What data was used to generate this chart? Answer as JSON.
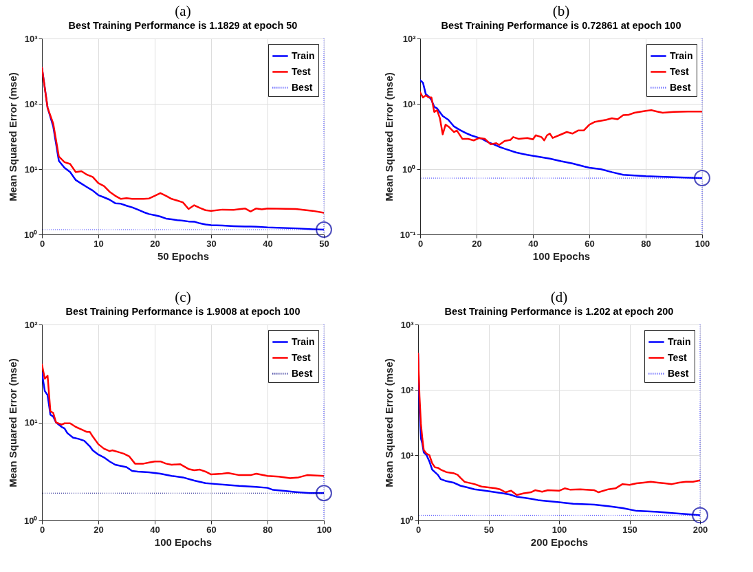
{
  "chart_data": [
    {
      "type": "line",
      "title": "(a)",
      "subtitle": "Best Training Performance is 1.1829 at epoch 50",
      "xlabel": "50 Epochs",
      "ylabel": "Mean Squared Error  (mse)",
      "log": true,
      "grid": true,
      "legend": "top right",
      "xlim": [
        0,
        50
      ],
      "ylim": [
        1,
        1000
      ],
      "xticks": [
        0,
        10,
        20,
        30,
        40,
        50
      ],
      "yticks": [
        {
          "value": 1,
          "label": "10⁰"
        },
        {
          "value": 10,
          "label": "10¹"
        },
        {
          "value": 100,
          "label": "10²"
        },
        {
          "value": 1000,
          "label": "10³"
        }
      ],
      "series": [
        {
          "name": "Train",
          "color": "#0000ff",
          "x": [
            0,
            1,
            2,
            3,
            4,
            5,
            6,
            7,
            8,
            9,
            10,
            11,
            12,
            13,
            14,
            15,
            16,
            17,
            18,
            19,
            20,
            21,
            22,
            23,
            24,
            25,
            26,
            27,
            28,
            29,
            30,
            32,
            34,
            36,
            37,
            38,
            39,
            40,
            45,
            48,
            50
          ],
          "values": [
            357,
            87,
            45,
            13.4,
            10.5,
            9,
            6.8,
            6,
            5.3,
            4.7,
            4.0,
            3.7,
            3.4,
            3.0,
            2.95,
            2.75,
            2.6,
            2.4,
            2.2,
            2.05,
            1.97,
            1.88,
            1.75,
            1.7,
            1.65,
            1.62,
            1.58,
            1.57,
            1.48,
            1.42,
            1.39,
            1.37,
            1.34,
            1.32,
            1.32,
            1.31,
            1.3,
            1.28,
            1.24,
            1.2,
            1.1829
          ]
        },
        {
          "name": "Test",
          "color": "#ff0000",
          "x": [
            0,
            1,
            2,
            3,
            4,
            5,
            6,
            7,
            8,
            9,
            10,
            11,
            12,
            13,
            14,
            15,
            16,
            17,
            18,
            19,
            20,
            21,
            22,
            23,
            24,
            25,
            26,
            27,
            28,
            29,
            30,
            32,
            34,
            36,
            37,
            38,
            39,
            40,
            45,
            48,
            50
          ],
          "values": [
            357,
            87,
            50,
            15.6,
            12.8,
            12,
            9,
            9.3,
            8.2,
            7.6,
            6.1,
            5.5,
            4.5,
            3.9,
            3.5,
            3.6,
            3.5,
            3.5,
            3.5,
            3.55,
            3.9,
            4.3,
            3.9,
            3.5,
            3.3,
            3.1,
            2.45,
            2.8,
            2.55,
            2.35,
            2.3,
            2.4,
            2.38,
            2.5,
            2.25,
            2.5,
            2.42,
            2.5,
            2.45,
            2.3,
            2.15
          ]
        },
        {
          "type": "scatter",
          "color": "#0000a0",
          "x": [
            50
          ],
          "values": [
            1.1829
          ]
        }
      ],
      "ref_lines": [
        {
          "axis": "y",
          "value": 1.1829,
          "label": "Best",
          "color": "#3333ff",
          "line_style": "dotted"
        },
        {
          "axis": "x",
          "value": 50,
          "color": "#3333ff",
          "line_style": "dotted"
        }
      ]
    },
    {
      "type": "line",
      "title": "(b)",
      "subtitle": "Best Training Performance is 0.72861 at epoch 100",
      "xlabel": "100 Epochs",
      "ylabel": "Mean Squared Error  (mse)",
      "log": true,
      "grid": true,
      "legend": "top right",
      "xlim": [
        0,
        100
      ],
      "ylim": [
        0.1,
        100
      ],
      "xticks": [
        0,
        20,
        40,
        60,
        80,
        100
      ],
      "yticks": [
        {
          "value": 0.1,
          "label": "10⁻¹"
        },
        {
          "value": 1,
          "label": "10⁰"
        },
        {
          "value": 10,
          "label": "10¹"
        },
        {
          "value": 100,
          "label": "10²"
        }
      ],
      "series": [
        {
          "name": "Train",
          "color": "#0000ff",
          "x": [
            0,
            1,
            2,
            3,
            4,
            5,
            6,
            8,
            10,
            12,
            14,
            16,
            18,
            20,
            22,
            24,
            26,
            28,
            30,
            34,
            38,
            42,
            46,
            50,
            54,
            58,
            60,
            64,
            68,
            72,
            76,
            80,
            90,
            100
          ],
          "values": [
            23,
            21,
            14,
            13,
            11.5,
            9,
            8.5,
            6.5,
            5.7,
            4.5,
            4.0,
            3.6,
            3.3,
            3.1,
            2.9,
            2.6,
            2.4,
            2.2,
            2.05,
            1.8,
            1.65,
            1.55,
            1.45,
            1.32,
            1.22,
            1.1,
            1.05,
            1.0,
            0.9,
            0.82,
            0.8,
            0.78,
            0.75,
            0.72861
          ]
        },
        {
          "name": "Test",
          "color": "#ff0000",
          "x": [
            0,
            1,
            2,
            3,
            4,
            5,
            6,
            7,
            8,
            9,
            10,
            12,
            13,
            15,
            17,
            19,
            21,
            23,
            25,
            27,
            28,
            30,
            32,
            33,
            35,
            38,
            40,
            41,
            43,
            44,
            45,
            46,
            47,
            50,
            52,
            54,
            56,
            58,
            60,
            62,
            64,
            66,
            68,
            70,
            72,
            74,
            76,
            80,
            82,
            84,
            86,
            90,
            95,
            100
          ],
          "values": [
            15,
            12.5,
            13.5,
            12.5,
            12.5,
            7.5,
            8,
            6,
            3.4,
            4.8,
            4.5,
            3.7,
            3.9,
            2.9,
            2.9,
            2.75,
            3.0,
            2.9,
            2.4,
            2.5,
            2.35,
            2.7,
            2.8,
            3.1,
            2.9,
            3.0,
            2.85,
            3.3,
            3.1,
            2.75,
            3.3,
            3.5,
            3.0,
            3.4,
            3.7,
            3.5,
            3.9,
            3.9,
            4.8,
            5.3,
            5.5,
            5.7,
            6.0,
            5.8,
            6.7,
            6.8,
            7.3,
            7.8,
            8.0,
            7.6,
            7.3,
            7.5,
            7.6,
            7.6
          ]
        },
        {
          "type": "scatter",
          "color": "#0000a0",
          "x": [
            100
          ],
          "values": [
            0.72861
          ]
        }
      ],
      "ref_lines": [
        {
          "axis": "y",
          "value": 0.72861,
          "label": "Best",
          "color": "#3333ff",
          "line_style": "dotted"
        },
        {
          "axis": "x",
          "value": 100,
          "color": "#3333ff",
          "line_style": "dotted"
        }
      ]
    },
    {
      "type": "line",
      "title": "(c)",
      "subtitle": "Best Training Performance is 1.9008 at epoch 100",
      "xlabel": "100 Epochs",
      "ylabel": "Mean Squared Error  (mse)",
      "log": true,
      "grid": true,
      "legend": "top right",
      "xlim": [
        0,
        100
      ],
      "ylim": [
        1,
        100
      ],
      "xticks": [
        0,
        20,
        40,
        60,
        80,
        100
      ],
      "yticks": [
        {
          "value": 1,
          "label": "10⁰"
        },
        {
          "value": 10,
          "label": "10¹"
        },
        {
          "value": 100,
          "label": "10²"
        }
      ],
      "series": [
        {
          "name": "Train",
          "color": "#0000ff",
          "x": [
            0,
            1,
            2,
            3,
            4,
            5,
            7,
            8,
            9,
            11,
            13,
            15,
            17,
            18,
            20,
            22,
            24,
            26,
            28,
            30,
            32,
            34,
            38,
            42,
            46,
            50,
            54,
            58,
            62,
            66,
            70,
            76,
            80,
            82,
            86,
            90,
            95,
            100
          ],
          "values": [
            32,
            21,
            19,
            12,
            11.5,
            10,
            9,
            8.7,
            7.8,
            7.0,
            6.8,
            6.5,
            5.7,
            5.2,
            4.7,
            4.4,
            4.0,
            3.7,
            3.6,
            3.5,
            3.2,
            3.15,
            3.1,
            3.0,
            2.85,
            2.75,
            2.55,
            2.4,
            2.35,
            2.3,
            2.25,
            2.2,
            2.15,
            2.05,
            2.0,
            1.95,
            1.9,
            1.9008
          ]
        },
        {
          "name": "Test",
          "color": "#ff0000",
          "x": [
            0,
            1,
            2,
            3,
            4,
            5,
            7,
            8,
            10,
            12,
            14,
            16,
            17,
            18,
            20,
            22,
            24,
            25,
            27,
            29,
            31,
            33,
            36,
            38,
            40,
            42,
            44,
            46,
            49,
            52,
            54,
            56,
            58,
            60,
            64,
            66,
            70,
            74,
            76,
            80,
            84,
            88,
            91,
            94,
            100
          ],
          "values": [
            39,
            28,
            30,
            13,
            12.5,
            10,
            9.5,
            9.8,
            9.8,
            9.0,
            8.5,
            8.0,
            8.0,
            7.2,
            6.0,
            5.4,
            5.1,
            5.2,
            5.0,
            4.8,
            4.5,
            3.8,
            3.8,
            3.9,
            4.0,
            4.0,
            3.8,
            3.7,
            3.75,
            3.35,
            3.25,
            3.3,
            3.15,
            2.95,
            3.0,
            3.05,
            2.9,
            2.9,
            3.0,
            2.85,
            2.8,
            2.7,
            2.75,
            2.9,
            2.85
          ]
        },
        {
          "type": "scatter",
          "color": "#0000a0",
          "x": [
            100
          ],
          "values": [
            1.9008
          ]
        }
      ],
      "ref_lines": [
        {
          "axis": "y",
          "value": 1.9008,
          "label": "Best",
          "color": "#000080",
          "line_style": "dotted"
        },
        {
          "axis": "x",
          "value": 100,
          "color": "#3333ff",
          "line_style": "dotted"
        }
      ]
    },
    {
      "type": "line",
      "title": "(d)",
      "subtitle": "Best Training Performance is 1.202 at epoch 200",
      "xlabel": "200 Epochs",
      "ylabel": "Mean Squared Error  (mse)",
      "log": true,
      "grid": true,
      "legend": "top right",
      "xlim": [
        0,
        200
      ],
      "ylim": [
        1,
        1000
      ],
      "xticks": [
        0,
        50,
        100,
        150,
        200
      ],
      "yticks": [
        {
          "value": 1,
          "label": "10⁰"
        },
        {
          "value": 10,
          "label": "10¹"
        },
        {
          "value": 100,
          "label": "10²"
        },
        {
          "value": 1000,
          "label": "10³"
        }
      ],
      "series": [
        {
          "name": "Train",
          "color": "#0000ff",
          "x": [
            0,
            1,
            2,
            3,
            4,
            6,
            8,
            10,
            14,
            16,
            20,
            25,
            30,
            35,
            40,
            45,
            50,
            55,
            60,
            65,
            70,
            80,
            85,
            90,
            100,
            110,
            125,
            135,
            145,
            155,
            170,
            180,
            190,
            200
          ],
          "values": [
            360,
            50,
            18,
            15,
            11,
            10,
            8,
            6,
            5,
            4.3,
            4.0,
            3.8,
            3.4,
            3.2,
            3.0,
            2.9,
            2.8,
            2.7,
            2.6,
            2.5,
            2.3,
            2.15,
            2.05,
            2.0,
            1.9,
            1.8,
            1.75,
            1.65,
            1.55,
            1.4,
            1.35,
            1.3,
            1.25,
            1.202
          ]
        },
        {
          "name": "Test",
          "color": "#ff0000",
          "x": [
            0,
            1,
            2,
            3,
            4,
            6,
            8,
            10,
            12,
            14,
            16,
            20,
            25,
            28,
            30,
            33,
            40,
            45,
            50,
            55,
            58,
            62,
            66,
            70,
            75,
            80,
            83,
            88,
            92,
            100,
            104,
            108,
            115,
            125,
            128,
            135,
            140,
            145,
            150,
            155,
            160,
            165,
            170,
            175,
            180,
            185,
            190,
            195,
            200
          ],
          "values": [
            360,
            80,
            30,
            18,
            12,
            10.5,
            10,
            7.5,
            6.5,
            6.4,
            6.0,
            5.5,
            5.3,
            5.0,
            4.5,
            3.9,
            3.6,
            3.3,
            3.2,
            3.1,
            3.0,
            2.7,
            2.85,
            2.45,
            2.6,
            2.7,
            2.9,
            2.75,
            2.9,
            2.85,
            3.1,
            2.95,
            3.0,
            2.9,
            2.7,
            3.0,
            3.1,
            3.6,
            3.5,
            3.7,
            3.8,
            3.9,
            3.8,
            3.7,
            3.6,
            3.8,
            3.9,
            3.9,
            4.1
          ]
        },
        {
          "type": "scatter",
          "color": "#0000a0",
          "x": [
            200
          ],
          "values": [
            1.202
          ]
        }
      ],
      "ref_lines": [
        {
          "axis": "y",
          "value": 1.202,
          "label": "Best",
          "color": "#3333ff",
          "line_style": "dotted"
        },
        {
          "axis": "x",
          "value": 200,
          "color": "#3333ff",
          "line_style": "dotted"
        }
      ]
    }
  ]
}
